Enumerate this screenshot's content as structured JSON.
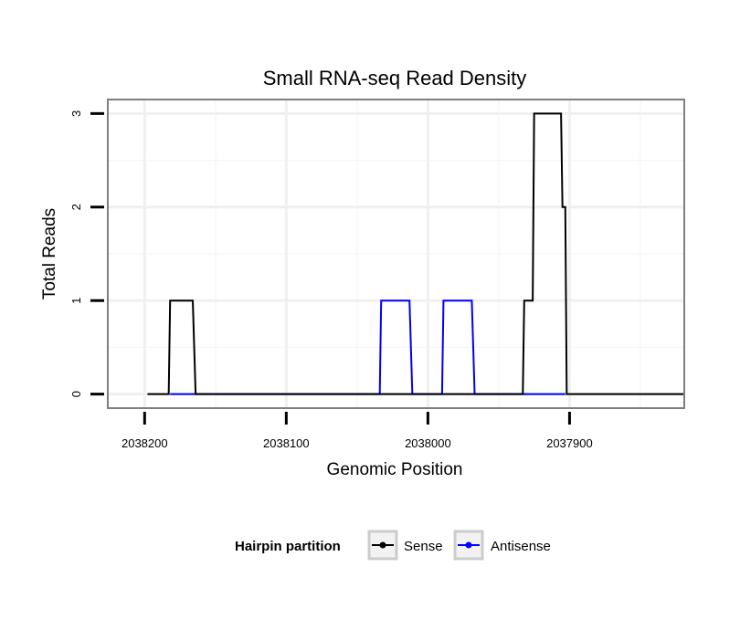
{
  "chart_data": {
    "type": "line",
    "title": "Small RNA-seq Read Density",
    "xlabel": "Genomic Position",
    "ylabel": "Total Reads",
    "xlim": [
      2038226,
      2037819
    ],
    "x_reversed": true,
    "ylim": [
      -0.15,
      3.15
    ],
    "x_ticks": [
      2038200,
      2038100,
      2038000,
      2037900
    ],
    "x_tick_labels": [
      "2038200",
      "2038100",
      "2038000",
      "2037900"
    ],
    "y_ticks": [
      0,
      1,
      2,
      3
    ],
    "y_tick_labels": [
      "0",
      "1",
      "2",
      "3"
    ],
    "grid": true,
    "legend": {
      "title": "Hairpin partition",
      "position": "bottom",
      "entries": [
        "Sense",
        "Antisense"
      ]
    },
    "series": [
      {
        "name": "Sense",
        "color": "#000000",
        "x": [
          2038198,
          2038183,
          2038182,
          2038166,
          2038164,
          2037963,
          2037933,
          2037932,
          2037926,
          2037925,
          2037906,
          2037905,
          2037903,
          2037902,
          2037800
        ],
        "y": [
          0,
          0,
          1,
          1,
          0,
          0,
          0,
          1,
          1,
          3,
          3,
          2,
          2,
          0,
          0
        ]
      },
      {
        "name": "Antisense",
        "color": "#0000ff",
        "x": [
          2038182,
          2038164,
          2038034,
          2038033,
          2038013,
          2038011,
          2037990,
          2037989,
          2037969,
          2037967,
          2037933,
          2037903
        ],
        "y": [
          0,
          0,
          0,
          1,
          1,
          0,
          0,
          1,
          1,
          0,
          0,
          0
        ]
      }
    ]
  }
}
